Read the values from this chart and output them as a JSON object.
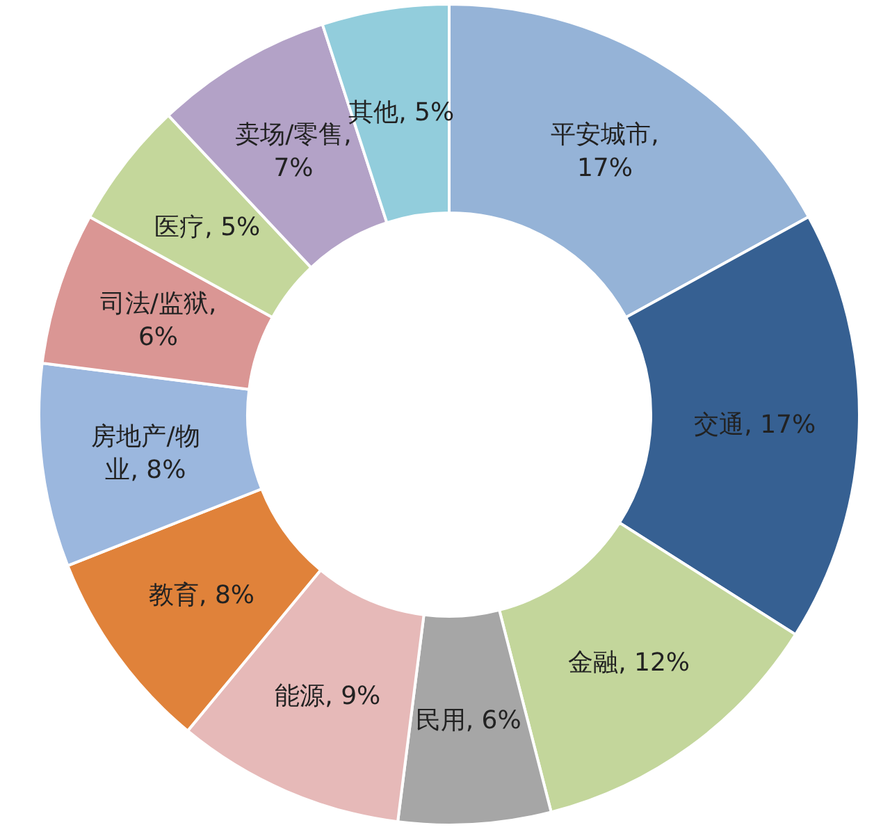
{
  "chart_data": {
    "type": "donut",
    "categories": [
      "平安城市",
      "交通",
      "金融",
      "民用",
      "能源",
      "教育",
      "房地产/物业",
      "司法/监狱",
      "医疗",
      "卖场/零售",
      "其他"
    ],
    "values": [
      17,
      17,
      12,
      6,
      9,
      8,
      8,
      6,
      5,
      7,
      5
    ],
    "colors": [
      "#95b3d7",
      "#366092",
      "#c3d69b",
      "#a6a6a6",
      "#e6b9b8",
      "#e0823a",
      "#9bb7de",
      "#da9694",
      "#c4d79b",
      "#b3a2c7",
      "#92cddc"
    ],
    "value_labels": [
      ", 17%",
      ", 17%",
      ", 12%",
      ", 6%",
      ", 9%",
      ", 8%",
      ", 8%",
      ", 6%",
      ", 5%",
      ", 7%",
      ", 5%"
    ]
  }
}
